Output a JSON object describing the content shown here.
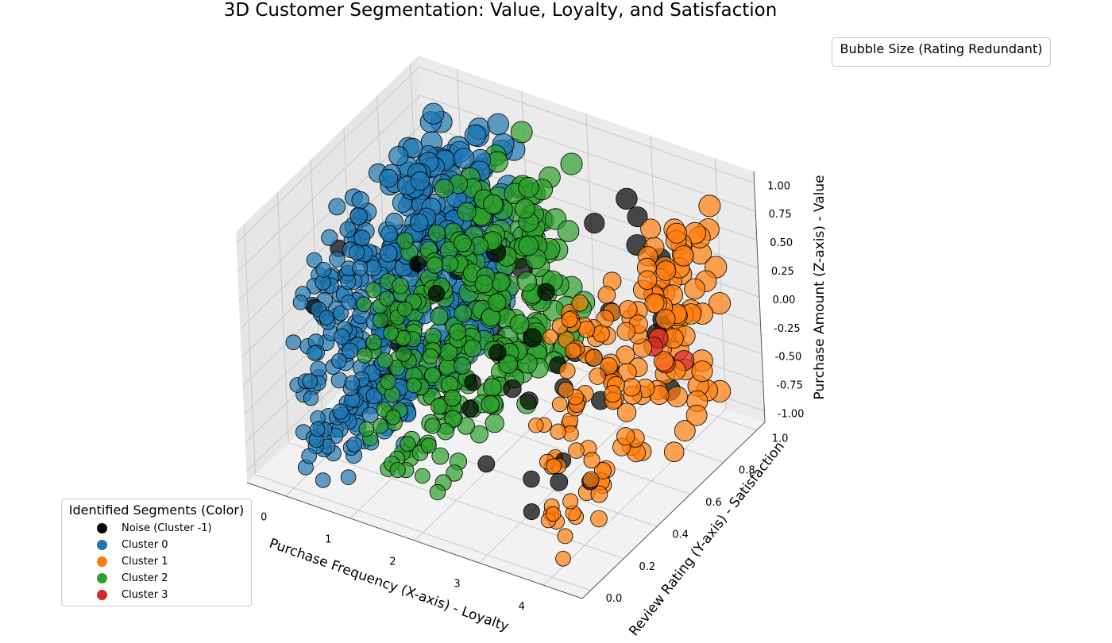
{
  "chart_data": {
    "type": "scatter",
    "projection": "3d",
    "title": "3D Customer Segmentation: Value, Loyalty, and Satisfaction",
    "xlabel": "Purchase Frequency (X-axis) - Loyalty",
    "ylabel": "Review Rating (Y-axis) - Satisfaction",
    "zlabel": "Purchase Amount (Z-axis) - Value",
    "xlim": [
      -0.6,
      4.6
    ],
    "ylim": [
      -0.05,
      1.05
    ],
    "zlim": [
      -1.1,
      1.1
    ],
    "xticks": [
      "0",
      "1",
      "2",
      "3",
      "4"
    ],
    "yticks": [
      "0.0",
      "0.2",
      "0.4",
      "0.6",
      "0.8",
      "1.0"
    ],
    "zticks": [
      "1.00",
      "0.75",
      "0.50",
      "0.25",
      "0.00",
      "-0.25",
      "-0.50",
      "-0.75",
      "-1.00"
    ],
    "grid": true,
    "series": [
      {
        "name": "Noise (Cluster -1)",
        "color": "#000000",
        "cluster": -1,
        "approx_count": 45,
        "x_range": [
          0,
          4
        ],
        "y_range": [
          0.05,
          1.0
        ],
        "z_range": [
          -1.0,
          1.0
        ]
      },
      {
        "name": "Cluster 0",
        "color": "#1f77b4",
        "cluster": 0,
        "approx_count": 430,
        "x_range": [
          0.0,
          1.0
        ],
        "y_range": [
          0.0,
          1.0
        ],
        "z_range": [
          -1.0,
          1.0
        ]
      },
      {
        "name": "Cluster 1",
        "color": "#ff7f0e",
        "cluster": 1,
        "approx_count": 160,
        "x_range": [
          3.8,
          4.2
        ],
        "y_range": [
          0.0,
          1.0
        ],
        "z_range": [
          -1.0,
          1.0
        ]
      },
      {
        "name": "Cluster 2",
        "color": "#2ca02c",
        "cluster": 2,
        "approx_count": 300,
        "x_range": [
          1.0,
          2.0
        ],
        "y_range": [
          0.0,
          1.0
        ],
        "z_range": [
          -1.0,
          1.0
        ]
      },
      {
        "name": "Cluster 3",
        "color": "#d62728",
        "cluster": 3,
        "approx_count": 4,
        "x_range": [
          4.0,
          4.2
        ],
        "y_range": [
          0.55,
          0.95
        ],
        "z_range": [
          -0.3,
          0.5
        ]
      }
    ],
    "point_opacity": 0.7,
    "point_edgecolor": "#000000",
    "size_encoding": "Review Rating",
    "legends": [
      {
        "title": "Identified Segments (Color)",
        "placement": "lower-left",
        "entries": [
          "Noise (Cluster -1)",
          "Cluster 0",
          "Cluster 1",
          "Cluster 2",
          "Cluster 3"
        ]
      },
      {
        "title": "Bubble Size (Rating Redundant)",
        "placement": "upper-right",
        "entries": []
      }
    ]
  }
}
